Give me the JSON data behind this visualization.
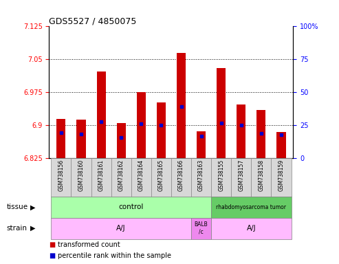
{
  "title": "GDS5527 / 4850075",
  "samples": [
    "GSM738156",
    "GSM738160",
    "GSM738161",
    "GSM738162",
    "GSM738164",
    "GSM738165",
    "GSM738166",
    "GSM738163",
    "GSM738155",
    "GSM738157",
    "GSM738158",
    "GSM738159"
  ],
  "bar_bottom": 6.825,
  "bar_tops": [
    6.915,
    6.913,
    7.022,
    6.905,
    6.975,
    6.952,
    7.065,
    6.887,
    7.03,
    6.948,
    6.935,
    6.885
  ],
  "percentile_values": [
    6.883,
    6.88,
    6.908,
    6.873,
    6.903,
    6.9,
    6.943,
    6.875,
    6.905,
    6.9,
    6.882,
    6.878
  ],
  "ylim_left": [
    6.825,
    7.125
  ],
  "ylim_right": [
    0,
    100
  ],
  "yticks_left": [
    6.825,
    6.9,
    6.975,
    7.05,
    7.125
  ],
  "yticks_right": [
    0,
    25,
    50,
    75,
    100
  ],
  "bar_color": "#cc0000",
  "percentile_color": "#0000cc",
  "tissue_control_color": "#aaffaa",
  "tissue_tumor_color": "#66cc66",
  "strain_aj_color": "#ffbbff",
  "strain_balb_color": "#ee88ee",
  "label_bg_color": "#d8d8d8",
  "control_samples": 8,
  "aj1_samples": 7,
  "balb_samples": 1,
  "aj2_samples": 4
}
